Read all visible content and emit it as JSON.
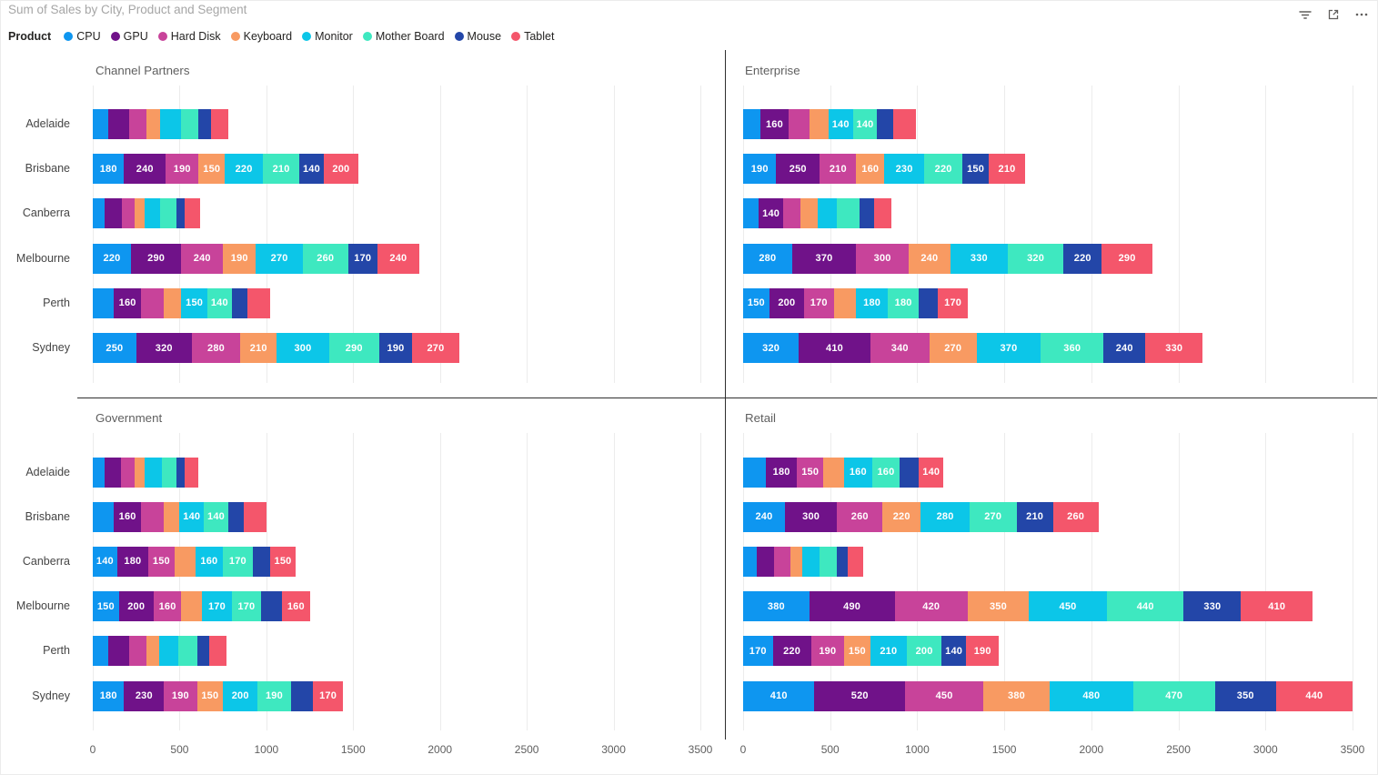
{
  "header": {
    "title": "Sum of Sales by City, Product and Segment",
    "icons": [
      {
        "name": "filter-icon"
      },
      {
        "name": "focus-mode-icon"
      },
      {
        "name": "more-options-icon"
      }
    ]
  },
  "legend": {
    "label": "Product",
    "position": "top",
    "items": [
      {
        "name": "CPU",
        "color": "#0E96F0"
      },
      {
        "name": "GPU",
        "color": "#701289"
      },
      {
        "name": "Hard Disk",
        "color": "#C8439A"
      },
      {
        "name": "Keyboard",
        "color": "#F89A62"
      },
      {
        "name": "Monitor",
        "color": "#0CC6E8"
      },
      {
        "name": "Mother Board",
        "color": "#3EE8C0"
      },
      {
        "name": "Mouse",
        "color": "#2346A8"
      },
      {
        "name": "Tablet",
        "color": "#F4566B"
      }
    ]
  },
  "chart_data": {
    "type": "bar",
    "orientation": "horizontal",
    "stacked": true,
    "small_multiples_by": "Segment",
    "title": "Sum of Sales by City, Product and Segment",
    "categories": [
      "Adelaide",
      "Brisbane",
      "Canberra",
      "Melbourne",
      "Perth",
      "Sydney"
    ],
    "series_names": [
      "CPU",
      "GPU",
      "Hard Disk",
      "Keyboard",
      "Monitor",
      "Mother Board",
      "Mouse",
      "Tablet"
    ],
    "series_colors": [
      "#0E96F0",
      "#701289",
      "#C8439A",
      "#F89A62",
      "#0CC6E8",
      "#3EE8C0",
      "#2346A8",
      "#F4566B"
    ],
    "xlim": [
      0,
      3500
    ],
    "x_ticks": [
      0,
      500,
      1000,
      1500,
      2000,
      2500,
      3000,
      3500
    ],
    "grid": true,
    "data_label_min_value": 140,
    "panels": [
      {
        "title": "Channel Partners",
        "rows": [
          {
            "city": "Adelaide",
            "values": [
              90,
              120,
              100,
              80,
              120,
              100,
              70,
              100
            ]
          },
          {
            "city": "Brisbane",
            "values": [
              180,
              240,
              190,
              150,
              220,
              210,
              140,
              200
            ]
          },
          {
            "city": "Canberra",
            "values": [
              70,
              100,
              70,
              60,
              90,
              90,
              50,
              90
            ]
          },
          {
            "city": "Melbourne",
            "values": [
              220,
              290,
              240,
              190,
              270,
              260,
              170,
              240
            ]
          },
          {
            "city": "Perth",
            "values": [
              120,
              160,
              130,
              100,
              150,
              140,
              90,
              130
            ]
          },
          {
            "city": "Sydney",
            "values": [
              250,
              320,
              280,
              210,
              300,
              290,
              190,
              270
            ]
          }
        ]
      },
      {
        "title": "Enterprise",
        "rows": [
          {
            "city": "Adelaide",
            "values": [
              100,
              160,
              120,
              110,
              140,
              140,
              90,
              130
            ]
          },
          {
            "city": "Brisbane",
            "values": [
              190,
              250,
              210,
              160,
              230,
              220,
              150,
              210
            ]
          },
          {
            "city": "Canberra",
            "values": [
              90,
              140,
              100,
              100,
              110,
              130,
              80,
              100
            ]
          },
          {
            "city": "Melbourne",
            "values": [
              280,
              370,
              300,
              240,
              330,
              320,
              220,
              290
            ]
          },
          {
            "city": "Perth",
            "values": [
              150,
              200,
              170,
              130,
              180,
              180,
              110,
              170
            ]
          },
          {
            "city": "Sydney",
            "values": [
              320,
              410,
              340,
              270,
              370,
              360,
              240,
              330
            ]
          }
        ]
      },
      {
        "title": "Government",
        "rows": [
          {
            "city": "Adelaide",
            "values": [
              70,
              90,
              80,
              60,
              100,
              80,
              50,
              80
            ]
          },
          {
            "city": "Brisbane",
            "values": [
              120,
              160,
              130,
              90,
              140,
              140,
              90,
              130
            ]
          },
          {
            "city": "Canberra",
            "values": [
              140,
              180,
              150,
              120,
              160,
              170,
              100,
              150
            ]
          },
          {
            "city": "Melbourne",
            "values": [
              150,
              200,
              160,
              120,
              170,
              170,
              120,
              160
            ]
          },
          {
            "city": "Perth",
            "values": [
              90,
              120,
              100,
              70,
              110,
              110,
              70,
              100
            ]
          },
          {
            "city": "Sydney",
            "values": [
              180,
              230,
              190,
              150,
              200,
              190,
              130,
              170
            ]
          }
        ]
      },
      {
        "title": "Retail",
        "rows": [
          {
            "city": "Adelaide",
            "values": [
              130,
              180,
              150,
              120,
              160,
              160,
              110,
              140
            ]
          },
          {
            "city": "Brisbane",
            "values": [
              240,
              300,
              260,
              220,
              280,
              270,
              210,
              260
            ]
          },
          {
            "city": "Canberra",
            "values": [
              80,
              100,
              90,
              70,
              100,
              100,
              60,
              90
            ]
          },
          {
            "city": "Melbourne",
            "values": [
              380,
              490,
              420,
              350,
              450,
              440,
              330,
              410
            ]
          },
          {
            "city": "Perth",
            "values": [
              170,
              220,
              190,
              150,
              210,
              200,
              140,
              190
            ]
          },
          {
            "city": "Sydney",
            "values": [
              410,
              520,
              450,
              380,
              480,
              470,
              350,
              440
            ]
          }
        ]
      }
    ]
  }
}
